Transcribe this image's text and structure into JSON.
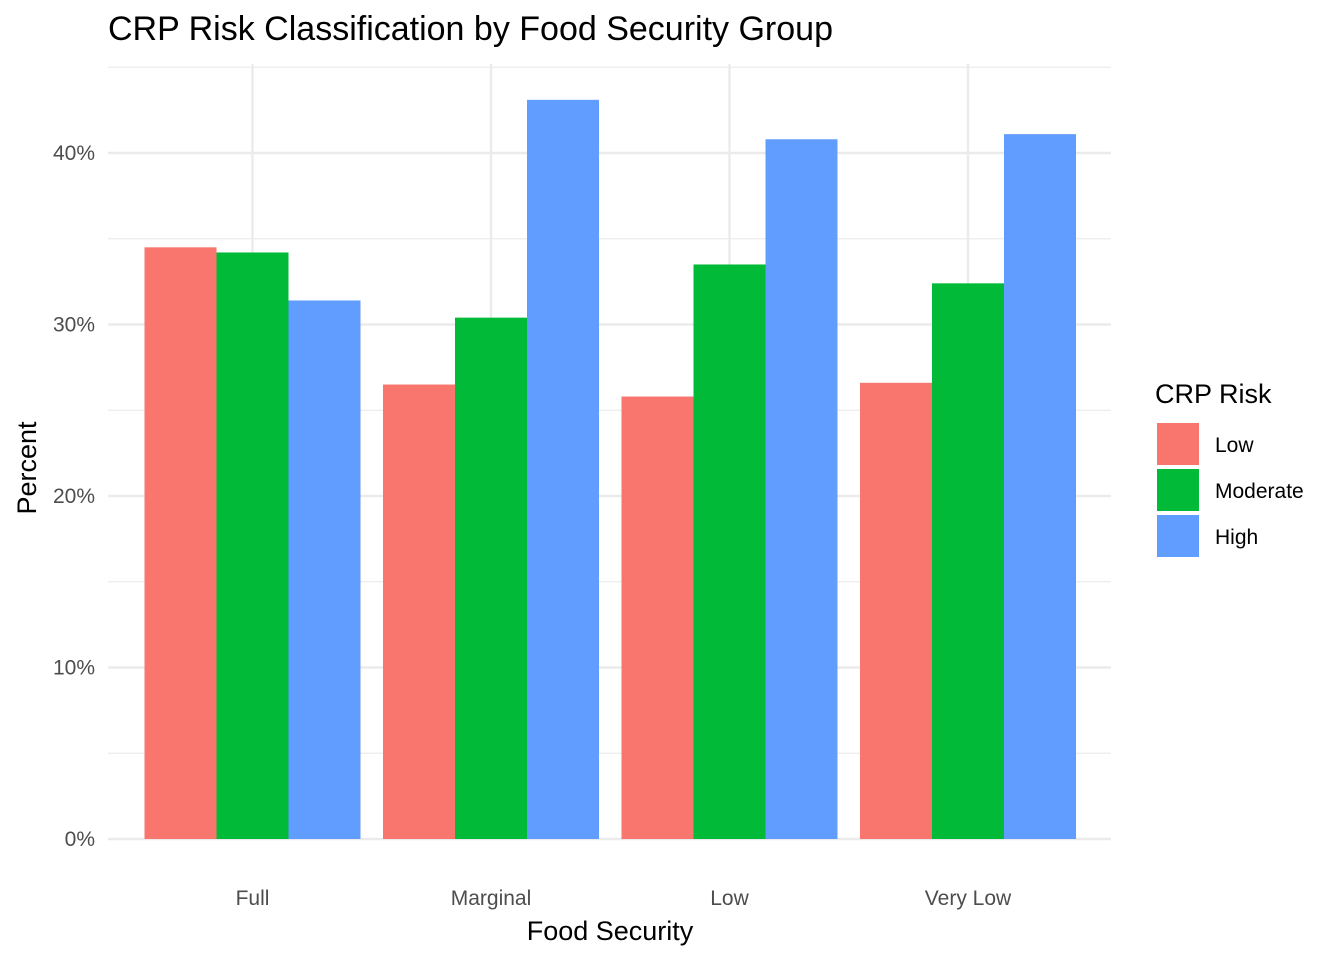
{
  "chart_data": {
    "type": "bar",
    "title": "CRP Risk Classification by Food Security Group",
    "xlabel": "Food Security",
    "ylabel": "Percent",
    "categories": [
      "Full",
      "Marginal",
      "Low",
      "Very Low"
    ],
    "series": [
      {
        "name": "Low",
        "color": "#F8766D",
        "values": [
          34.5,
          26.5,
          25.8,
          26.6
        ]
      },
      {
        "name": "Moderate",
        "color": "#00BA38",
        "values": [
          34.2,
          30.4,
          33.5,
          32.4
        ]
      },
      {
        "name": "High",
        "color": "#619CFF",
        "values": [
          31.4,
          43.1,
          40.8,
          41.1
        ]
      }
    ],
    "ylim": [
      0,
      45
    ],
    "yticks": [
      0,
      10,
      20,
      30,
      40
    ],
    "ytick_labels": [
      "0%",
      "10%",
      "20%",
      "30%",
      "40%"
    ],
    "grid": true,
    "legend": {
      "title": "CRP Risk",
      "position": "right"
    }
  }
}
